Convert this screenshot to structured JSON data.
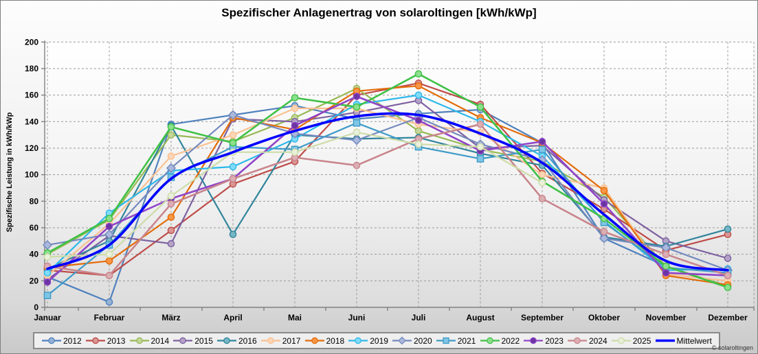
{
  "title": "Spezifischer Anlagenertrag von solaroltingen [kWh/kWp]",
  "y_axis_title": "Spezifische Leistung in kWh/kWp",
  "copyright": "© solaroltingen",
  "chart_data": {
    "type": "line",
    "title": "Spezifischer Anlagenertrag von solaroltingen [kWh/kWp]",
    "xlabel": "",
    "ylabel": "Spezifische Leistung in kWh/kWp",
    "legend_position": "bottom",
    "grid": "dashed",
    "y_axis": {
      "min": 0,
      "max": 200,
      "step": 20
    },
    "categories": [
      "Januar",
      "Februar",
      "März",
      "April",
      "Mai",
      "Juni",
      "Juli",
      "August",
      "September",
      "Oktober",
      "November",
      "Dezember"
    ],
    "series": [
      {
        "name": "2012",
        "color": "#4F81BD",
        "fill": "#95B3D7",
        "marker": "circle",
        "smooth": false,
        "width": 2.2,
        "values": [
          23,
          4,
          138,
          145,
          152,
          142,
          146,
          149,
          124,
          52,
          31,
          16
        ]
      },
      {
        "name": "2013",
        "color": "#BE4B48",
        "fill": "#D99694",
        "marker": "circle",
        "smooth": false,
        "width": 2.2,
        "values": [
          28,
          24,
          58,
          93,
          110,
          160,
          169,
          153,
          101,
          74,
          43,
          55
        ]
      },
      {
        "name": "2014",
        "color": "#98B954",
        "fill": "#C3D69B",
        "marker": "circle",
        "smooth": false,
        "width": 2.2,
        "values": [
          40,
          66,
          130,
          125,
          143,
          165,
          133,
          119,
          110,
          83,
          31,
          16
        ]
      },
      {
        "name": "2015",
        "color": "#7D60A0",
        "fill": "#B3A2C7",
        "marker": "circle",
        "smooth": false,
        "width": 2.2,
        "values": [
          21,
          54,
          48,
          142,
          140,
          147,
          156,
          120,
          122,
          81,
          50,
          37
        ]
      },
      {
        "name": "2016",
        "color": "#31859C",
        "fill": "#76B6C4",
        "marker": "circle",
        "smooth": false,
        "width": 2.2,
        "values": [
          29,
          50,
          137,
          55,
          130,
          127,
          128,
          116,
          107,
          53,
          46,
          59
        ]
      },
      {
        "name": "2017",
        "color": "#FAC090",
        "fill": "#FBD5B5",
        "marker": "circle",
        "smooth": false,
        "width": 2.2,
        "values": [
          24,
          63,
          114,
          130,
          150,
          150,
          138,
          132,
          100,
          90,
          25,
          20
        ]
      },
      {
        "name": "2018",
        "color": "#E36C0A",
        "fill": "#F79646",
        "marker": "circle",
        "smooth": false,
        "width": 2.2,
        "values": [
          30,
          35,
          68,
          143,
          134,
          163,
          167,
          143,
          124,
          88,
          24,
          17
        ]
      },
      {
        "name": "2019",
        "color": "#2DB8EA",
        "fill": "#7FDBF8",
        "marker": "circle",
        "smooth": false,
        "width": 2.2,
        "values": [
          26,
          71,
          103,
          106,
          127,
          153,
          160,
          140,
          114,
          65,
          28,
          29
        ]
      },
      {
        "name": "2020",
        "color": "#7489BE",
        "fill": "#A9B8DC",
        "marker": "diamond",
        "smooth": false,
        "width": 2.2,
        "values": [
          47,
          55,
          105,
          145,
          131,
          126,
          143,
          123,
          111,
          52,
          45,
          28
        ]
      },
      {
        "name": "2021",
        "color": "#3E9BC8",
        "fill": "#7FC5E4",
        "marker": "square",
        "smooth": false,
        "width": 2.2,
        "values": [
          9,
          47,
          98,
          121,
          119,
          139,
          121,
          112,
          119,
          64,
          30,
          26
        ]
      },
      {
        "name": "2022",
        "color": "#3FC146",
        "fill": "#8CE08C",
        "marker": "circle",
        "smooth": false,
        "width": 2.6,
        "values": [
          41,
          67,
          136,
          124,
          158,
          151,
          176,
          151,
          95,
          67,
          31,
          15
        ]
      },
      {
        "name": "2023",
        "color": "#9044C8",
        "fill": "#6A35A3",
        "marker": "circle",
        "smooth": false,
        "width": 2.6,
        "values": [
          19,
          61,
          82,
          97,
          137,
          159,
          141,
          118,
          125,
          78,
          26,
          24
        ]
      },
      {
        "name": "2024",
        "color": "#C9858C",
        "fill": "#DBAEB3",
        "marker": "circle",
        "smooth": false,
        "width": 2.6,
        "values": [
          31,
          24,
          78,
          97,
          113,
          107,
          127,
          138,
          82,
          57,
          40,
          24
        ]
      },
      {
        "name": "2025",
        "color": "#CDDCA8",
        "fill": "#E9F0DB",
        "marker": "circle",
        "smooth": false,
        "width": 2.2,
        "values": [
          38,
          40,
          84,
          117,
          117,
          132,
          123,
          121,
          94,
          null,
          null,
          null
        ]
      },
      {
        "name": "Mittelwert",
        "color": "#0000FF",
        "fill": "#0000FF",
        "marker": "none",
        "smooth": true,
        "width": 3.6,
        "values": [
          29,
          47,
          97,
          117,
          133,
          144,
          145,
          131,
          109,
          70,
          35,
          28
        ]
      }
    ]
  }
}
